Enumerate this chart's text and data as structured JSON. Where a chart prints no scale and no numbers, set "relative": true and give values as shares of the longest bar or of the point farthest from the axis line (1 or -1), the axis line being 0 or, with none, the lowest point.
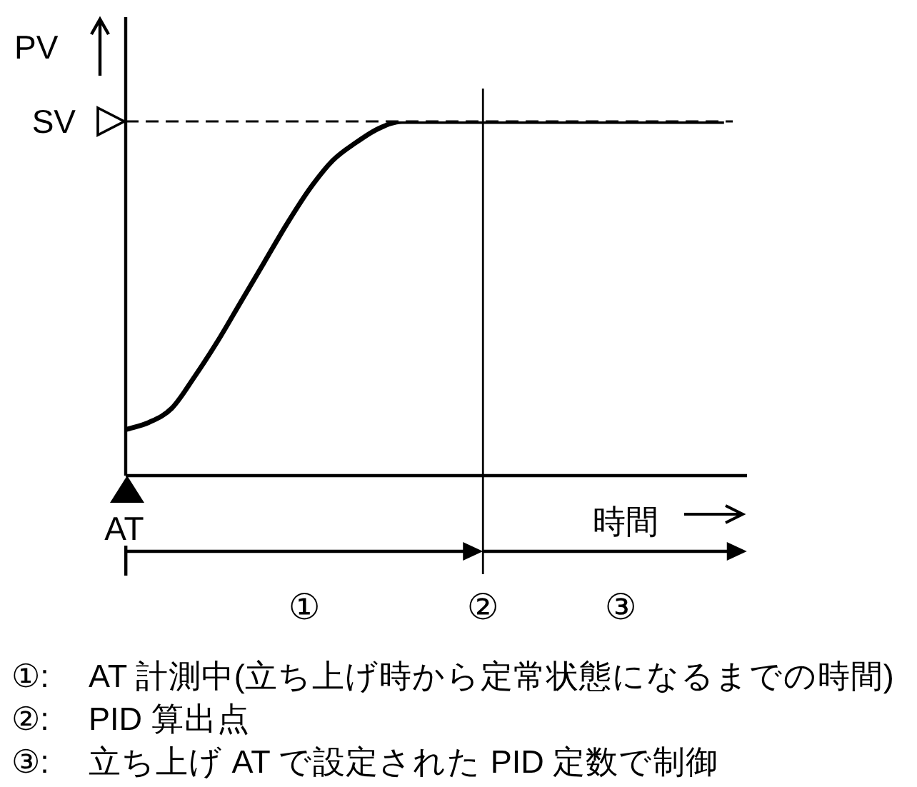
{
  "chart_data": {
    "type": "line",
    "relative": true,
    "xlabel": "時間",
    "ylabel": "PV",
    "categories": [
      null,
      null,
      null,
      null,
      null,
      null,
      null,
      null,
      null,
      null,
      null,
      null,
      null,
      null,
      null,
      null,
      null,
      null,
      null,
      null,
      null,
      null,
      null,
      null,
      null,
      null,
      null,
      null
    ],
    "series": [
      {
        "color": "#000000",
        "values": [
          0.13,
          0.15,
          0.19,
          0.28,
          0.38,
          0.49,
          0.6,
          0.71,
          0.81,
          0.89,
          0.94,
          0.98,
          1,
          1,
          1,
          1,
          1,
          1,
          1,
          1,
          1,
          1,
          1,
          1,
          1,
          1,
          1,
          null
        ]
      }
    ],
    "ref_lines": [
      {
        "axis": "y",
        "value": 1,
        "label": "SV",
        "line_style": "dashed",
        "color": "#000000"
      }
    ],
    "annotations": [
      "AT",
      "①",
      "②",
      "③",
      "①: AT 計測中(立ち上げ時から定常状態になるまでの時間)",
      "②: PID 算出点",
      "③: 立ち上げ AT で設定された PID 定数で制御"
    ],
    "legend": false,
    "marker": "none",
    "line_style": "solid",
    "tick_labels": false
  }
}
